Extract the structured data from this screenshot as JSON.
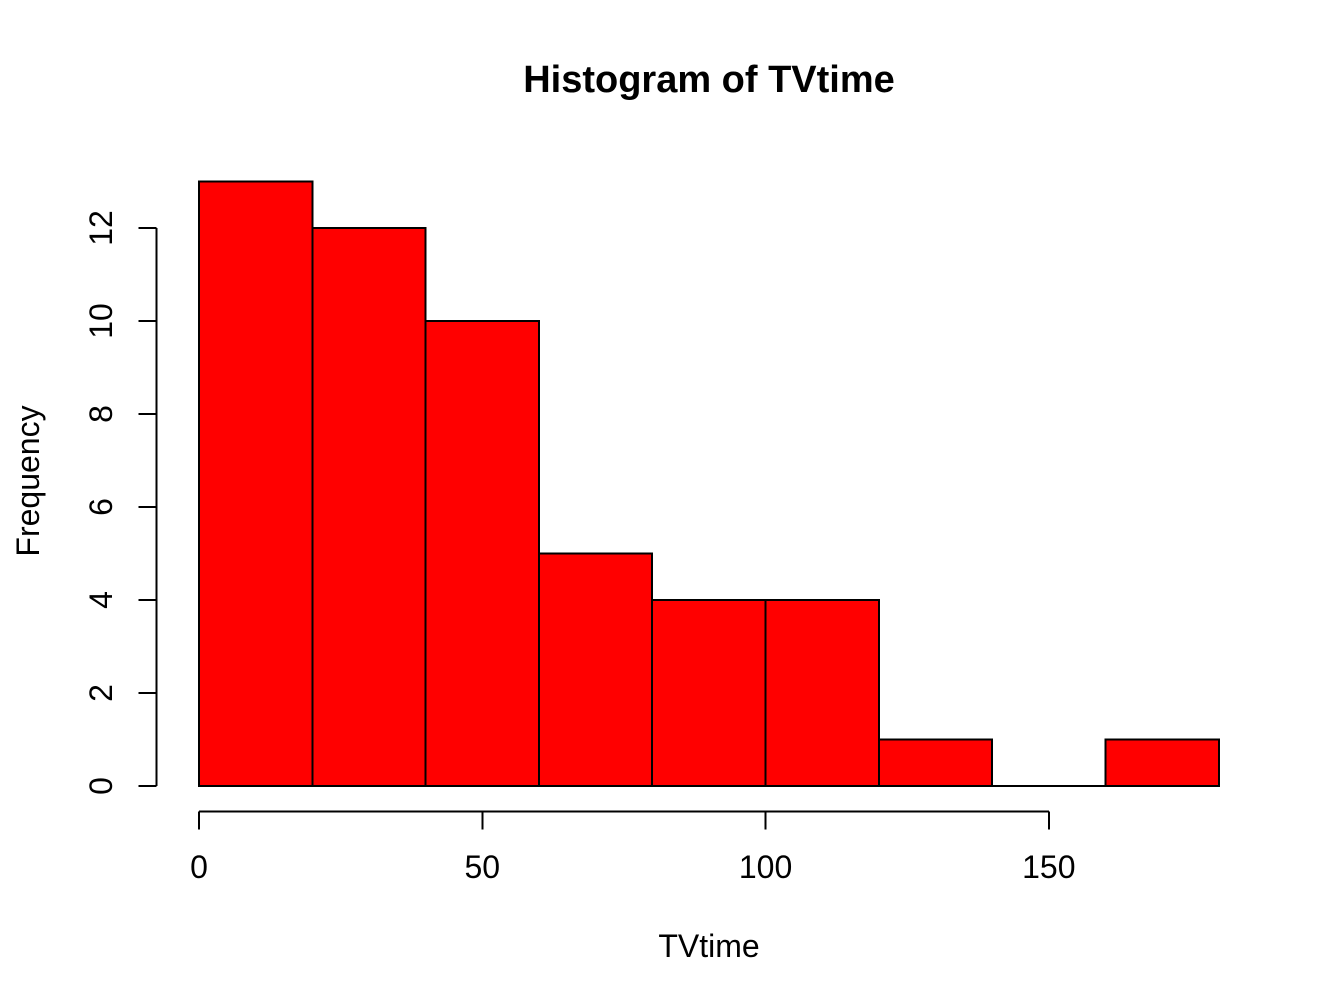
{
  "chart_data": {
    "type": "bar",
    "subtype": "histogram",
    "title": "Histogram of TVtime",
    "xlabel": "TVtime",
    "ylabel": "Frequency",
    "bin_edges": [
      0,
      20,
      40,
      60,
      80,
      100,
      120,
      140,
      160,
      180
    ],
    "counts": [
      13,
      12,
      10,
      5,
      4,
      4,
      1,
      0,
      1
    ],
    "xticks": [
      0,
      50,
      100,
      150
    ],
    "yticks": [
      0,
      2,
      4,
      6,
      8,
      10,
      12
    ],
    "xlim": [
      0,
      180
    ],
    "ylim": [
      0,
      13
    ],
    "grid": false,
    "legend": false,
    "bar_color": "#FF0000",
    "axis_color": "#000000",
    "text_color": "#000000",
    "background_color": "#FFFFFF"
  }
}
